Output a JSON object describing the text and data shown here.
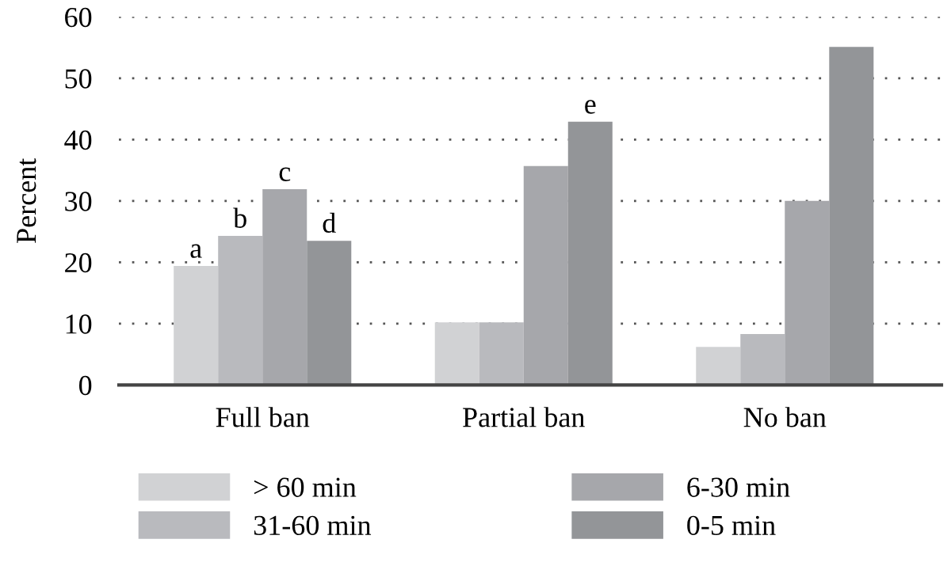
{
  "chart_data": {
    "type": "bar",
    "ylabel": "Percent",
    "categories": [
      "Full ban",
      "Partial ban",
      "No ban"
    ],
    "series": [
      {
        "name": "> 60 min",
        "color": "#d1d2d4",
        "values": [
          19.4,
          10.2,
          6.2
        ],
        "value_labels": [
          "a",
          null,
          null
        ]
      },
      {
        "name": "31-60 min",
        "color": "#b9babe",
        "values": [
          24.3,
          10.2,
          8.3
        ],
        "value_labels": [
          "b",
          null,
          null
        ]
      },
      {
        "name": "6-30 min",
        "color": "#a6a7ab",
        "values": [
          31.9,
          35.7,
          30.0
        ],
        "value_labels": [
          "c",
          null,
          null
        ]
      },
      {
        "name": "0-5 min",
        "color": "#939598",
        "values": [
          23.5,
          42.9,
          55.1
        ],
        "value_labels": [
          "d",
          "e",
          null
        ]
      }
    ],
    "ylim": [
      0,
      60
    ],
    "yticks": [
      0,
      10,
      20,
      30,
      40,
      50,
      60
    ],
    "grid": "y",
    "legend": "bottom"
  }
}
